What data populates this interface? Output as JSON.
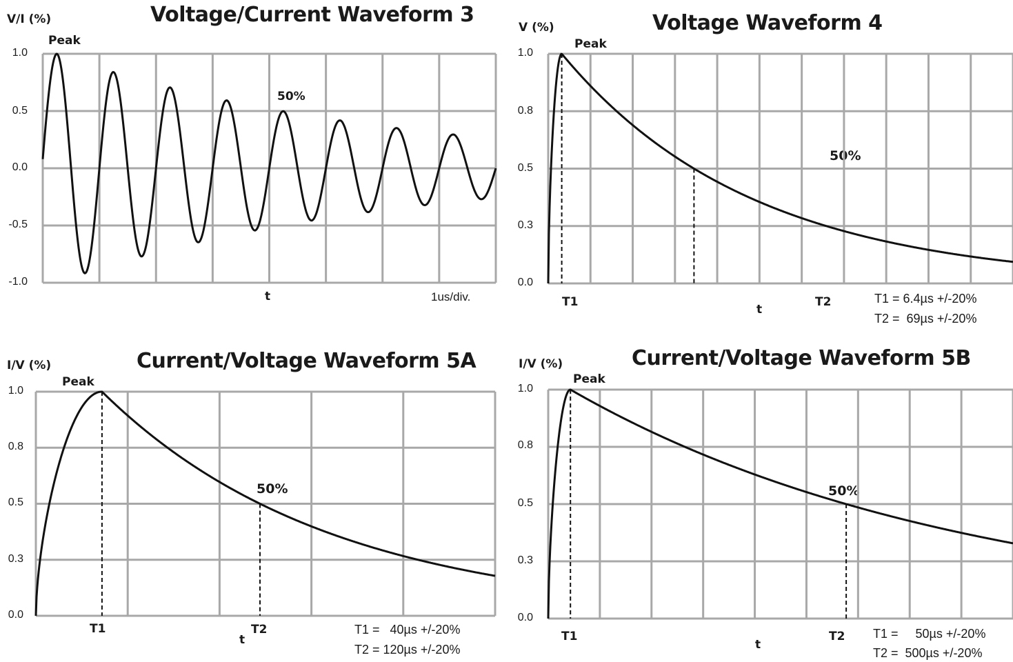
{
  "chart_data": [
    {
      "id": "wf3",
      "type": "line",
      "title": "Voltage/Current Waveform 3",
      "ylabel": "V/I  (%)",
      "xlabel": "t",
      "x_scale_label": "1us/div.",
      "ylim": [
        -1.0,
        1.0
      ],
      "yticks": [
        "1.0",
        "0.5",
        "0.0",
        "-0.5",
        "-1.0"
      ],
      "x_divisions": 8,
      "grid": true,
      "peak_label": "Peak",
      "half_label": "50%",
      "series": [
        {
          "wave": "damped_sine",
          "start": 0.08,
          "peak_x": 0.25,
          "period_div": 1.0,
          "decay_ratio_per_period": 0.84
        }
      ]
    },
    {
      "id": "wf4",
      "type": "line",
      "title": "Voltage Waveform 4",
      "ylabel": "V  (%)",
      "xlabel": "t",
      "ylim": [
        0.0,
        1.0
      ],
      "yticks": [
        "1.0",
        "0.8",
        "0.5",
        "0.3",
        "0.0"
      ],
      "x_divisions": 11,
      "grid": true,
      "peak_label": "Peak",
      "half_label": "50%",
      "t1_label": "T1",
      "t2_label": "T2",
      "t1_note": "T1 = 6.4µs +/-20%",
      "t2_note": "T2 =  69µs +/-20%",
      "series": [
        {
          "wave": "double_exp",
          "t_peak_div": 0.32,
          "t_half_div": 3.45,
          "x_end_div": 11
        }
      ]
    },
    {
      "id": "wf5a",
      "type": "line",
      "title": "Current/Voltage Waveform 5A",
      "ylabel": "I/V  (%)",
      "xlabel": "t",
      "ylim": [
        0.0,
        1.0
      ],
      "yticks": [
        "1.0",
        "0.8",
        "0.5",
        "0.3",
        "0.0"
      ],
      "x_divisions": 5,
      "grid": true,
      "peak_label": "Peak",
      "half_label": "50%",
      "t1_label": "T1",
      "t2_label": "T2",
      "t1_note": "T1 =   40µs +/-20%",
      "t2_note": "T2 = 120µs +/-20%",
      "series": [
        {
          "wave": "double_exp",
          "t_peak_div": 0.72,
          "t_half_div": 2.44,
          "x_end_div": 5
        }
      ]
    },
    {
      "id": "wf5b",
      "type": "line",
      "title": "Current/Voltage Waveform 5B",
      "ylabel": "I/V  (%)",
      "xlabel": "t",
      "ylim": [
        0.0,
        1.0
      ],
      "yticks": [
        "1.0",
        "0.8",
        "0.5",
        "0.3",
        "0.0"
      ],
      "x_divisions": 9,
      "grid": true,
      "peak_label": "Peak",
      "half_label": "50%",
      "t1_label": "T1",
      "t2_label": "T2",
      "t1_note": "T1 =     50µs +/-20%",
      "t2_note": "T2 =  500µs +/-20%",
      "series": [
        {
          "wave": "double_exp",
          "t_peak_div": 0.43,
          "t_half_div": 5.77,
          "x_end_div": 9
        }
      ]
    }
  ]
}
